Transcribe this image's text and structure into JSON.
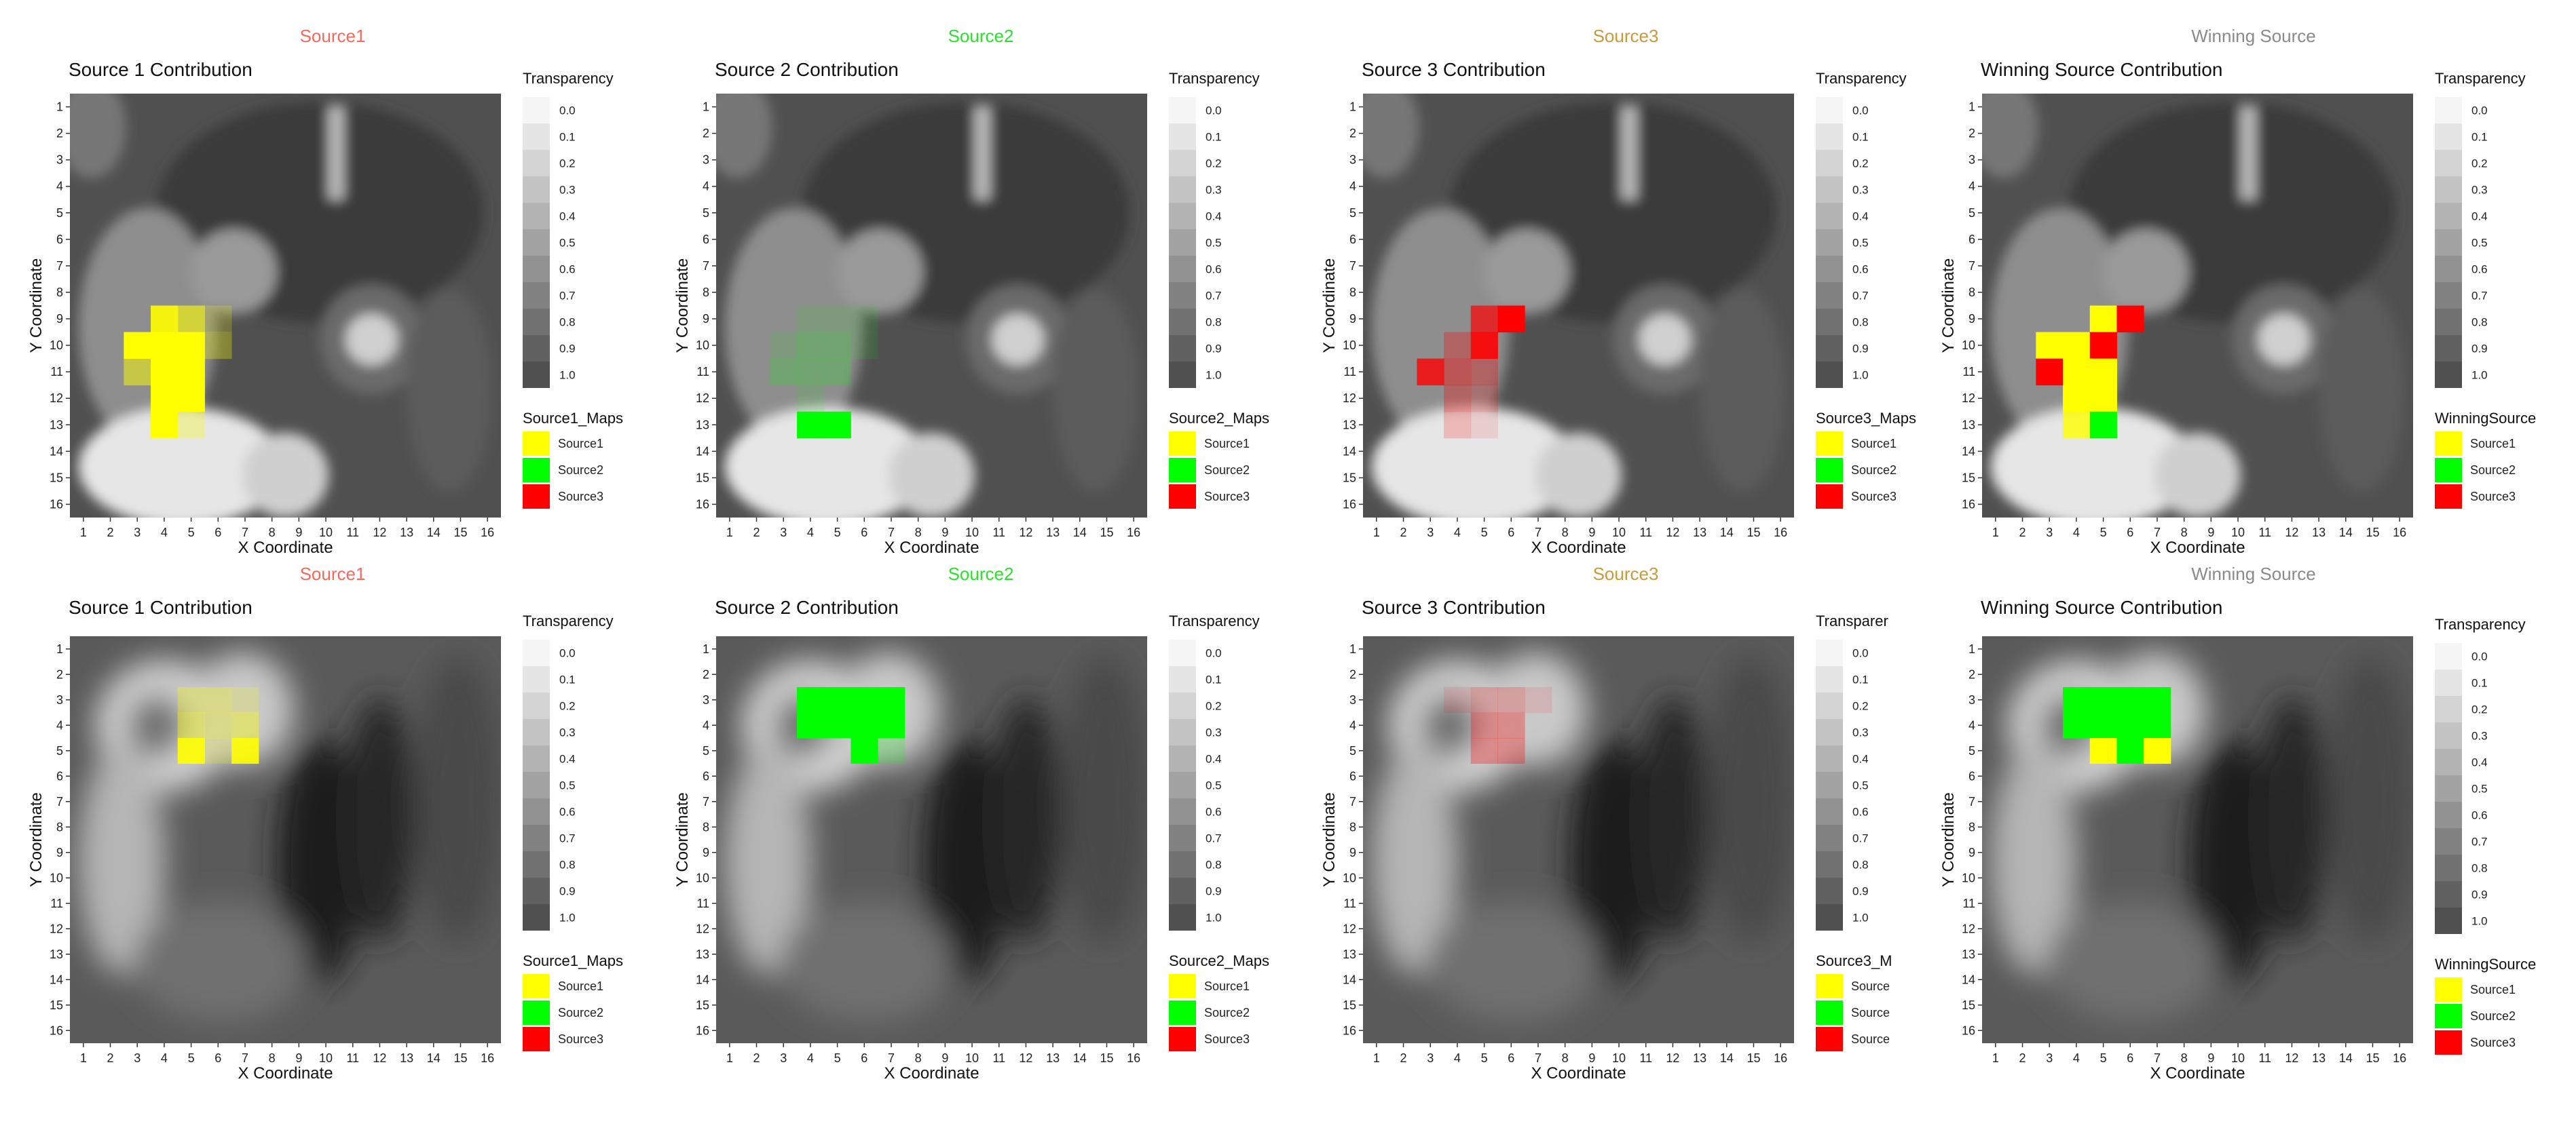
{
  "colors": {
    "Source1": "#ffff00",
    "Source2": "#00ff00",
    "Source3": "#ff0000",
    "source_title_colors": [
      "#f16a5b",
      "#2de02d",
      "#c79a3c",
      "#8a8a8a"
    ]
  },
  "transparency_scale": {
    "title": "Transparency",
    "levels": [
      "0.0",
      "0.1",
      "0.2",
      "0.3",
      "0.4",
      "0.5",
      "0.6",
      "0.7",
      "0.8",
      "0.9",
      "1.0"
    ]
  },
  "axis_ticks": [
    "1",
    "2",
    "3",
    "4",
    "5",
    "6",
    "7",
    "8",
    "9",
    "10",
    "11",
    "12",
    "13",
    "14",
    "15",
    "16"
  ],
  "panels": [
    {
      "header": "Source1",
      "title": "Source 1 Contribution",
      "xlabel": "X Coordinate",
      "ylabel": "Y Coordinate",
      "transparency_title": "Transparency",
      "legend_title": "Source1_Maps",
      "legend_items": [
        "Source1",
        "Source2",
        "Source3"
      ]
    },
    {
      "header": "Source2",
      "title": "Source 2 Contribution",
      "xlabel": "X Coordinate",
      "ylabel": "Y Coordinate",
      "transparency_title": "Transparency",
      "legend_title": "Source2_Maps",
      "legend_items": [
        "Source1",
        "Source2",
        "Source3"
      ]
    },
    {
      "header": "Source3",
      "title": "Source 3 Contribution",
      "xlabel": "X Coordinate",
      "ylabel": "Y Coordinate",
      "transparency_title": "Transparency",
      "legend_title": "Source3_Maps",
      "legend_items": [
        "Source1",
        "Source2",
        "Source3"
      ]
    },
    {
      "header": "Winning Source",
      "title": "Winning Source Contribution",
      "xlabel": "X Coordinate",
      "ylabel": "Y Coordinate",
      "transparency_title": "Transparency",
      "legend_title": "WinningSource",
      "legend_items": [
        "Source1",
        "Source2",
        "Source3"
      ]
    },
    {
      "header": "Source1",
      "title": "Source 1 Contribution",
      "xlabel": "X Coordinate",
      "ylabel": "Y Coordinate",
      "transparency_title": "Transparency",
      "legend_title": "Source1_Maps",
      "legend_items": [
        "Source1",
        "Source2",
        "Source3"
      ]
    },
    {
      "header": "Source2",
      "title": "Source 2 Contribution",
      "xlabel": "X Coordinate",
      "ylabel": "Y Coordinate",
      "transparency_title": "Transparency",
      "legend_title": "Source2_Maps",
      "legend_items": [
        "Source1",
        "Source2",
        "Source3"
      ]
    },
    {
      "header": "Source3",
      "title": "Source 3 Contribution",
      "xlabel": "X Coordinate",
      "ylabel": "Y Coordinate",
      "transparency_title": "Transparer",
      "legend_title": "Source3_M",
      "legend_items": [
        "Source",
        "Source",
        "Source"
      ]
    },
    {
      "header": "Winning Source",
      "title": "Winning Source Contribution",
      "xlabel": "X Coordinate",
      "ylabel": "Y Coordinate",
      "transparency_title": "Transparency",
      "legend_title": "WinningSource",
      "legend_items": [
        "Source1",
        "Source2",
        "Source3"
      ]
    }
  ],
  "chart_data": [
    {
      "type": "heatmap",
      "title": "Source 1 Contribution",
      "xlabel": "X Coordinate",
      "ylabel": "Y Coordinate",
      "xlim": [
        1,
        16
      ],
      "ylim": [
        1,
        16
      ],
      "y_reversed": true,
      "cells": [
        {
          "x": 4,
          "y": 9,
          "source": "Source1",
          "transparency": 0.1
        },
        {
          "x": 5,
          "y": 9,
          "source": "Source1",
          "transparency": 0.4
        },
        {
          "x": 6,
          "y": 9,
          "source": "Source1",
          "transparency": 0.8
        },
        {
          "x": 3,
          "y": 10,
          "source": "Source1",
          "transparency": 0.0
        },
        {
          "x": 4,
          "y": 10,
          "source": "Source1",
          "transparency": 0.0
        },
        {
          "x": 5,
          "y": 10,
          "source": "Source1",
          "transparency": 0.0
        },
        {
          "x": 6,
          "y": 10,
          "source": "Source1",
          "transparency": 0.7
        },
        {
          "x": 3,
          "y": 11,
          "source": "Source1",
          "transparency": 0.5
        },
        {
          "x": 4,
          "y": 11,
          "source": "Source1",
          "transparency": 0.0
        },
        {
          "x": 5,
          "y": 11,
          "source": "Source1",
          "transparency": 0.0
        },
        {
          "x": 4,
          "y": 12,
          "source": "Source1",
          "transparency": 0.0
        },
        {
          "x": 5,
          "y": 12,
          "source": "Source1",
          "transparency": 0.0
        },
        {
          "x": 4,
          "y": 13,
          "source": "Source1",
          "transparency": 0.0
        },
        {
          "x": 5,
          "y": 13,
          "source": "Source1",
          "transparency": 0.7
        }
      ]
    },
    {
      "type": "heatmap",
      "title": "Source 2 Contribution",
      "xlabel": "X Coordinate",
      "ylabel": "Y Coordinate",
      "xlim": [
        1,
        16
      ],
      "ylim": [
        1,
        16
      ],
      "y_reversed": true,
      "cells": [
        {
          "x": 4,
          "y": 9,
          "source": "Source2",
          "transparency": 0.9
        },
        {
          "x": 5,
          "y": 9,
          "source": "Source2",
          "transparency": 0.9
        },
        {
          "x": 6,
          "y": 9,
          "source": "Source2",
          "transparency": 0.9
        },
        {
          "x": 3,
          "y": 10,
          "source": "Source2",
          "transparency": 0.9
        },
        {
          "x": 4,
          "y": 10,
          "source": "Source2",
          "transparency": 0.8
        },
        {
          "x": 5,
          "y": 10,
          "source": "Source2",
          "transparency": 0.8
        },
        {
          "x": 6,
          "y": 10,
          "source": "Source2",
          "transparency": 0.9
        },
        {
          "x": 3,
          "y": 11,
          "source": "Source2",
          "transparency": 0.8
        },
        {
          "x": 4,
          "y": 11,
          "source": "Source2",
          "transparency": 0.8
        },
        {
          "x": 5,
          "y": 11,
          "source": "Source2",
          "transparency": 0.8
        },
        {
          "x": 4,
          "y": 12,
          "source": "Source2",
          "transparency": 0.9
        },
        {
          "x": 4,
          "y": 13,
          "source": "Source2",
          "transparency": 0.0
        },
        {
          "x": 5,
          "y": 13,
          "source": "Source2",
          "transparency": 0.0
        }
      ]
    },
    {
      "type": "heatmap",
      "title": "Source 3 Contribution",
      "xlabel": "X Coordinate",
      "ylabel": "Y Coordinate",
      "xlim": [
        1,
        16
      ],
      "ylim": [
        1,
        16
      ],
      "y_reversed": true,
      "cells": [
        {
          "x": 5,
          "y": 9,
          "source": "Source3",
          "transparency": 0.3
        },
        {
          "x": 6,
          "y": 9,
          "source": "Source3",
          "transparency": 0.0
        },
        {
          "x": 4,
          "y": 10,
          "source": "Source3",
          "transparency": 0.7
        },
        {
          "x": 5,
          "y": 10,
          "source": "Source3",
          "transparency": 0.1
        },
        {
          "x": 3,
          "y": 11,
          "source": "Source3",
          "transparency": 0.2
        },
        {
          "x": 4,
          "y": 11,
          "source": "Source3",
          "transparency": 0.6
        },
        {
          "x": 5,
          "y": 11,
          "source": "Source3",
          "transparency": 0.7
        },
        {
          "x": 4,
          "y": 12,
          "source": "Source3",
          "transparency": 0.7
        },
        {
          "x": 5,
          "y": 12,
          "source": "Source3",
          "transparency": 0.8
        },
        {
          "x": 4,
          "y": 13,
          "source": "Source3",
          "transparency": 0.8
        },
        {
          "x": 5,
          "y": 13,
          "source": "Source3",
          "transparency": 0.9
        }
      ]
    },
    {
      "type": "heatmap",
      "title": "Winning Source Contribution",
      "xlabel": "X Coordinate",
      "ylabel": "Y Coordinate",
      "xlim": [
        1,
        16
      ],
      "ylim": [
        1,
        16
      ],
      "y_reversed": true,
      "cells": [
        {
          "x": 5,
          "y": 9,
          "source": "Source1",
          "transparency": 0.0
        },
        {
          "x": 6,
          "y": 9,
          "source": "Source3",
          "transparency": 0.0
        },
        {
          "x": 3,
          "y": 10,
          "source": "Source1",
          "transparency": 0.0
        },
        {
          "x": 4,
          "y": 10,
          "source": "Source1",
          "transparency": 0.0
        },
        {
          "x": 5,
          "y": 10,
          "source": "Source3",
          "transparency": 0.0
        },
        {
          "x": 3,
          "y": 11,
          "source": "Source3",
          "transparency": 0.0
        },
        {
          "x": 4,
          "y": 11,
          "source": "Source1",
          "transparency": 0.0
        },
        {
          "x": 5,
          "y": 11,
          "source": "Source1",
          "transparency": 0.0
        },
        {
          "x": 4,
          "y": 12,
          "source": "Source1",
          "transparency": 0.0
        },
        {
          "x": 5,
          "y": 12,
          "source": "Source1",
          "transparency": 0.0
        },
        {
          "x": 4,
          "y": 13,
          "source": "Source1",
          "transparency": 0.2
        },
        {
          "x": 5,
          "y": 13,
          "source": "Source2",
          "transparency": 0.0
        }
      ]
    },
    {
      "type": "heatmap",
      "title": "Source 1 Contribution",
      "xlabel": "X Coordinate",
      "ylabel": "Y Coordinate",
      "xlim": [
        1,
        16
      ],
      "ylim": [
        1,
        16
      ],
      "y_reversed": true,
      "cells": [
        {
          "x": 5,
          "y": 3,
          "source": "Source1",
          "transparency": 0.7
        },
        {
          "x": 6,
          "y": 3,
          "source": "Source1",
          "transparency": 0.7
        },
        {
          "x": 7,
          "y": 3,
          "source": "Source1",
          "transparency": 0.8
        },
        {
          "x": 5,
          "y": 4,
          "source": "Source1",
          "transparency": 0.6
        },
        {
          "x": 6,
          "y": 4,
          "source": "Source1",
          "transparency": 0.7
        },
        {
          "x": 7,
          "y": 4,
          "source": "Source1",
          "transparency": 0.6
        },
        {
          "x": 5,
          "y": 5,
          "source": "Source1",
          "transparency": 0.1
        },
        {
          "x": 6,
          "y": 5,
          "source": "Source1",
          "transparency": 0.8
        },
        {
          "x": 7,
          "y": 5,
          "source": "Source1",
          "transparency": 0.1
        }
      ]
    },
    {
      "type": "heatmap",
      "title": "Source 2 Contribution",
      "xlabel": "X Coordinate",
      "ylabel": "Y Coordinate",
      "xlim": [
        1,
        16
      ],
      "ylim": [
        1,
        16
      ],
      "y_reversed": true,
      "cells": [
        {
          "x": 4,
          "y": 3,
          "source": "Source2",
          "transparency": 0.0
        },
        {
          "x": 5,
          "y": 3,
          "source": "Source2",
          "transparency": 0.0
        },
        {
          "x": 6,
          "y": 3,
          "source": "Source2",
          "transparency": 0.0
        },
        {
          "x": 7,
          "y": 3,
          "source": "Source2",
          "transparency": 0.0
        },
        {
          "x": 4,
          "y": 4,
          "source": "Source2",
          "transparency": 0.0
        },
        {
          "x": 5,
          "y": 4,
          "source": "Source2",
          "transparency": 0.0
        },
        {
          "x": 6,
          "y": 4,
          "source": "Source2",
          "transparency": 0.0
        },
        {
          "x": 7,
          "y": 4,
          "source": "Source2",
          "transparency": 0.0
        },
        {
          "x": 6,
          "y": 5,
          "source": "Source2",
          "transparency": 0.0
        },
        {
          "x": 7,
          "y": 5,
          "source": "Source2",
          "transparency": 0.8
        }
      ]
    },
    {
      "type": "heatmap",
      "title": "Source 3 Contribution",
      "xlabel": "X Coordinate",
      "ylabel": "Y Coordinate",
      "xlim": [
        1,
        16
      ],
      "ylim": [
        1,
        16
      ],
      "y_reversed": true,
      "cells": [
        {
          "x": 4,
          "y": 3,
          "source": "Source3",
          "transparency": 0.9
        },
        {
          "x": 5,
          "y": 3,
          "source": "Source3",
          "transparency": 0.8
        },
        {
          "x": 6,
          "y": 3,
          "source": "Source3",
          "transparency": 0.8
        },
        {
          "x": 7,
          "y": 3,
          "source": "Source3",
          "transparency": 0.9
        },
        {
          "x": 5,
          "y": 4,
          "source": "Source3",
          "transparency": 0.7
        },
        {
          "x": 6,
          "y": 4,
          "source": "Source3",
          "transparency": 0.7
        },
        {
          "x": 5,
          "y": 5,
          "source": "Source3",
          "transparency": 0.7
        },
        {
          "x": 6,
          "y": 5,
          "source": "Source3",
          "transparency": 0.7
        }
      ]
    },
    {
      "type": "heatmap",
      "title": "Winning Source Contribution",
      "xlabel": "X Coordinate",
      "ylabel": "Y Coordinate",
      "xlim": [
        1,
        16
      ],
      "ylim": [
        1,
        16
      ],
      "y_reversed": true,
      "cells": [
        {
          "x": 4,
          "y": 3,
          "source": "Source2",
          "transparency": 0.0
        },
        {
          "x": 5,
          "y": 3,
          "source": "Source2",
          "transparency": 0.0
        },
        {
          "x": 6,
          "y": 3,
          "source": "Source2",
          "transparency": 0.0
        },
        {
          "x": 7,
          "y": 3,
          "source": "Source2",
          "transparency": 0.0
        },
        {
          "x": 4,
          "y": 4,
          "source": "Source2",
          "transparency": 0.0
        },
        {
          "x": 5,
          "y": 4,
          "source": "Source2",
          "transparency": 0.0
        },
        {
          "x": 6,
          "y": 4,
          "source": "Source2",
          "transparency": 0.0
        },
        {
          "x": 7,
          "y": 4,
          "source": "Source2",
          "transparency": 0.0
        },
        {
          "x": 5,
          "y": 5,
          "source": "Source1",
          "transparency": 0.0
        },
        {
          "x": 6,
          "y": 5,
          "source": "Source2",
          "transparency": 0.0
        },
        {
          "x": 7,
          "y": 5,
          "source": "Source1",
          "transparency": 0.0
        }
      ]
    }
  ]
}
